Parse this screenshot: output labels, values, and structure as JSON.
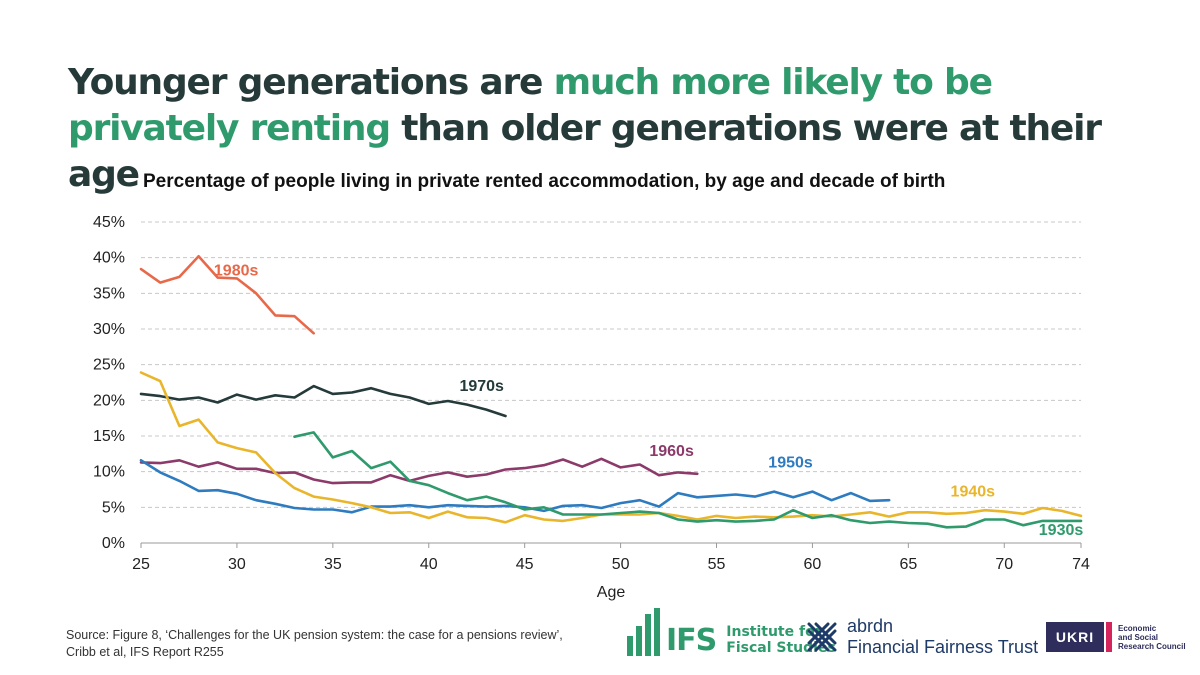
{
  "headline": {
    "part1": "Younger generations are ",
    "highlight": "much more likely to be privately renting",
    "part2": " than older generations were at their age"
  },
  "colors": {
    "headline": "#263a3a",
    "highlight": "#2f9a6c",
    "gridline": "#c8c8c8"
  },
  "chart_data": {
    "type": "line",
    "title": "Percentage of people living in private rented accommodation, by age and decade of birth",
    "xlabel": "Age",
    "ylabel": "",
    "xlim": [
      25,
      74
    ],
    "ylim": [
      0,
      45
    ],
    "xticks": [
      25,
      30,
      35,
      40,
      45,
      50,
      55,
      60,
      65,
      70,
      74
    ],
    "yticks": [
      0,
      5,
      10,
      15,
      20,
      25,
      30,
      35,
      40,
      45
    ],
    "y_tick_suffix": "%",
    "grid": "horizontal dashed",
    "legend": "direct labels",
    "series": [
      {
        "name": "1980s",
        "color": "#e8694a",
        "start_age": 25,
        "values": [
          38.4,
          36.5,
          37.3,
          40.2,
          37.2,
          37.1,
          35.0,
          31.9,
          31.8,
          29.4
        ]
      },
      {
        "name": "1970s",
        "color": "#253a3a",
        "start_age": 25,
        "values": [
          20.9,
          20.6,
          20.1,
          20.4,
          19.7,
          20.8,
          20.1,
          20.7,
          20.4,
          22.0,
          20.9,
          21.1,
          21.7,
          20.9,
          20.4,
          19.5,
          19.9,
          19.4,
          18.7,
          17.8
        ]
      },
      {
        "name": "1960s",
        "color": "#8b3a6a",
        "start_age": 25,
        "values": [
          11.3,
          11.2,
          11.6,
          10.7,
          11.3,
          10.4,
          10.4,
          9.8,
          9.9,
          8.9,
          8.4,
          8.5,
          8.5,
          9.5,
          8.7,
          9.4,
          9.9,
          9.3,
          9.6,
          10.3,
          10.5,
          10.9,
          11.7,
          10.7,
          11.8,
          10.6,
          11.0,
          9.5,
          9.9,
          9.7
        ]
      },
      {
        "name": "1950s",
        "color": "#2e7bbf",
        "start_age": 25,
        "values": [
          11.6,
          9.9,
          8.7,
          7.3,
          7.4,
          6.9,
          6.0,
          5.5,
          4.9,
          4.7,
          4.7,
          4.3,
          5.1,
          5.1,
          5.3,
          5.0,
          5.3,
          5.2,
          5.1,
          5.2,
          5.0,
          4.5,
          5.2,
          5.3,
          4.9,
          5.6,
          6.0,
          5.1,
          7.0,
          6.4,
          6.6,
          6.8,
          6.5,
          7.2,
          6.4,
          7.2,
          6.0,
          7.0,
          5.9,
          6.0
        ]
      },
      {
        "name": "1940s",
        "color": "#e9b52a",
        "start_age": 25,
        "values": [
          23.9,
          22.7,
          16.4,
          17.3,
          14.1,
          13.3,
          12.7,
          9.8,
          7.7,
          6.5,
          6.1,
          5.6,
          5.0,
          4.2,
          4.3,
          3.5,
          4.4,
          3.6,
          3.5,
          2.9,
          3.9,
          3.3,
          3.1,
          3.5,
          4.0,
          4.0,
          4.0,
          4.2,
          3.8,
          3.3,
          3.8,
          3.5,
          3.7,
          3.6,
          3.7,
          3.9,
          3.7,
          4.0,
          4.3,
          3.7,
          4.3,
          4.3,
          4.1,
          4.2,
          4.6,
          4.4,
          4.1,
          4.9,
          4.5,
          3.8
        ]
      },
      {
        "name": "1930s",
        "color": "#2f9a6c",
        "start_age": 33,
        "values": [
          14.9,
          15.5,
          12.0,
          12.9,
          10.5,
          11.4,
          8.7,
          8.1,
          7.0,
          6.0,
          6.5,
          5.7,
          4.7,
          5.0,
          4.0,
          4.0,
          4.0,
          4.2,
          4.4,
          4.2,
          3.3,
          3.0,
          3.2,
          3.0,
          3.1,
          3.3,
          4.6,
          3.5,
          3.9,
          3.2,
          2.8,
          3.0,
          2.8,
          2.7,
          2.2,
          2.3,
          3.3,
          3.3,
          2.5,
          3.1,
          3.1,
          3.1
        ]
      }
    ],
    "annotations": [
      {
        "series": "1980s",
        "text": "1980s",
        "x": 28.8,
        "y": 37.5
      },
      {
        "series": "1970s",
        "text": "1970s",
        "x": 41.6,
        "y": 21.3
      },
      {
        "series": "1960s",
        "text": "1960s",
        "x": 51.5,
        "y": 12.2
      },
      {
        "series": "1950s",
        "text": "1950s",
        "x": 57.7,
        "y": 10.6
      },
      {
        "series": "1940s",
        "text": "1940s",
        "x": 67.2,
        "y": 6.5
      },
      {
        "series": "1930s",
        "text": "1930s",
        "x": 71.8,
        "y": 1.1
      }
    ]
  },
  "source": "Source: Figure 8, ‘Challenges for the UK pension system: the case for a pensions review’, Cribb et al, IFS Report R255",
  "logos": {
    "ifs": {
      "mark": "IFS",
      "line1": "Institute for",
      "line2": "Fiscal Studies",
      "icon": "ifs-bars-icon"
    },
    "abrdn": {
      "line1": "abrdn",
      "line2": "Financial Fairness Trust",
      "icon": "abrdn-cross-icon"
    },
    "esrc": {
      "mark": "UKRI",
      "line1": "Economic",
      "line2": "and Social",
      "line3": "Research Council"
    }
  }
}
